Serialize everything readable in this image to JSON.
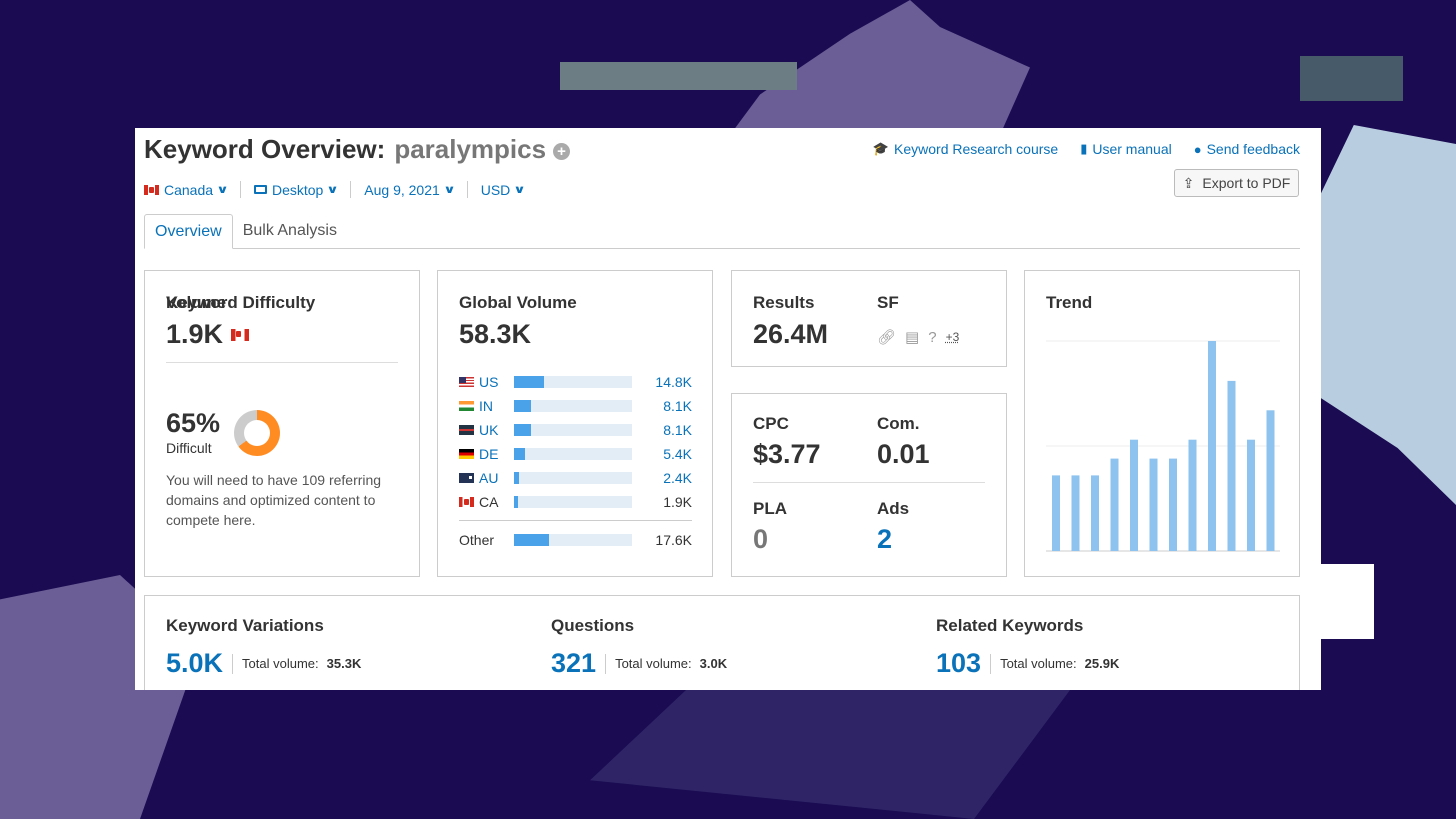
{
  "header": {
    "title": "Keyword Overview:",
    "keyword": "paralympics",
    "links": [
      "Keyword Research course",
      "User manual",
      "Send feedback"
    ],
    "export_label": "Export to PDF"
  },
  "filters": {
    "country": "Canada",
    "device": "Desktop",
    "date": "Aug 9, 2021",
    "currency": "USD"
  },
  "tabs": [
    "Overview",
    "Bulk Analysis"
  ],
  "volume": {
    "label": "Volume",
    "value": "1.9K",
    "kd_label": "Keyword Difficulty",
    "kd_value": "65%",
    "kd_percent": 65,
    "kd_level": "Difficult",
    "kd_desc": "You will need to have 109 referring domains and optimized content to compete here."
  },
  "global": {
    "label": "Global Volume",
    "value": "58.3K",
    "rows": [
      {
        "code": "US",
        "value": "14.8K",
        "share": 0.25
      },
      {
        "code": "IN",
        "value": "8.1K",
        "share": 0.14
      },
      {
        "code": "UK",
        "value": "8.1K",
        "share": 0.14
      },
      {
        "code": "DE",
        "value": "5.4K",
        "share": 0.09
      },
      {
        "code": "AU",
        "value": "2.4K",
        "share": 0.04
      },
      {
        "code": "CA",
        "value": "1.9K",
        "share": 0.03
      }
    ],
    "other": {
      "code": "Other",
      "value": "17.6K",
      "share": 0.3
    }
  },
  "results": {
    "label": "Results",
    "value": "26.4M",
    "sf_label": "SF",
    "sf_icons": [
      "link-icon",
      "news-icon",
      "faq-icon"
    ],
    "sf_more": "+3"
  },
  "cpc": {
    "cpc_label": "CPC",
    "cpc_value": "$3.77",
    "com_label": "Com.",
    "com_value": "0.01",
    "pla_label": "PLA",
    "pla_value": "0",
    "ads_label": "Ads",
    "ads_value": "2"
  },
  "trend": {
    "label": "Trend",
    "color": "#8dc3ee"
  },
  "chart_data": {
    "type": "bar",
    "values": [
      0.36,
      0.36,
      0.36,
      0.44,
      0.53,
      0.44,
      0.44,
      0.53,
      1.0,
      0.81,
      0.53,
      0.67
    ],
    "ylim": [
      0,
      1
    ],
    "grid": true
  },
  "bottom": {
    "variations": {
      "label": "Keyword Variations",
      "value": "5.0K",
      "total_label": "Total volume:",
      "total": "35.3K"
    },
    "questions": {
      "label": "Questions",
      "value": "321",
      "total_label": "Total volume:",
      "total": "3.0K"
    },
    "related": {
      "label": "Related Keywords",
      "value": "103",
      "total_label": "Total volume:",
      "total": "25.9K"
    }
  },
  "colors": {
    "accent": "#0a72b9",
    "bar": "#4aa3e8",
    "kd": "#ff8c23",
    "background": "#1a0b52"
  }
}
